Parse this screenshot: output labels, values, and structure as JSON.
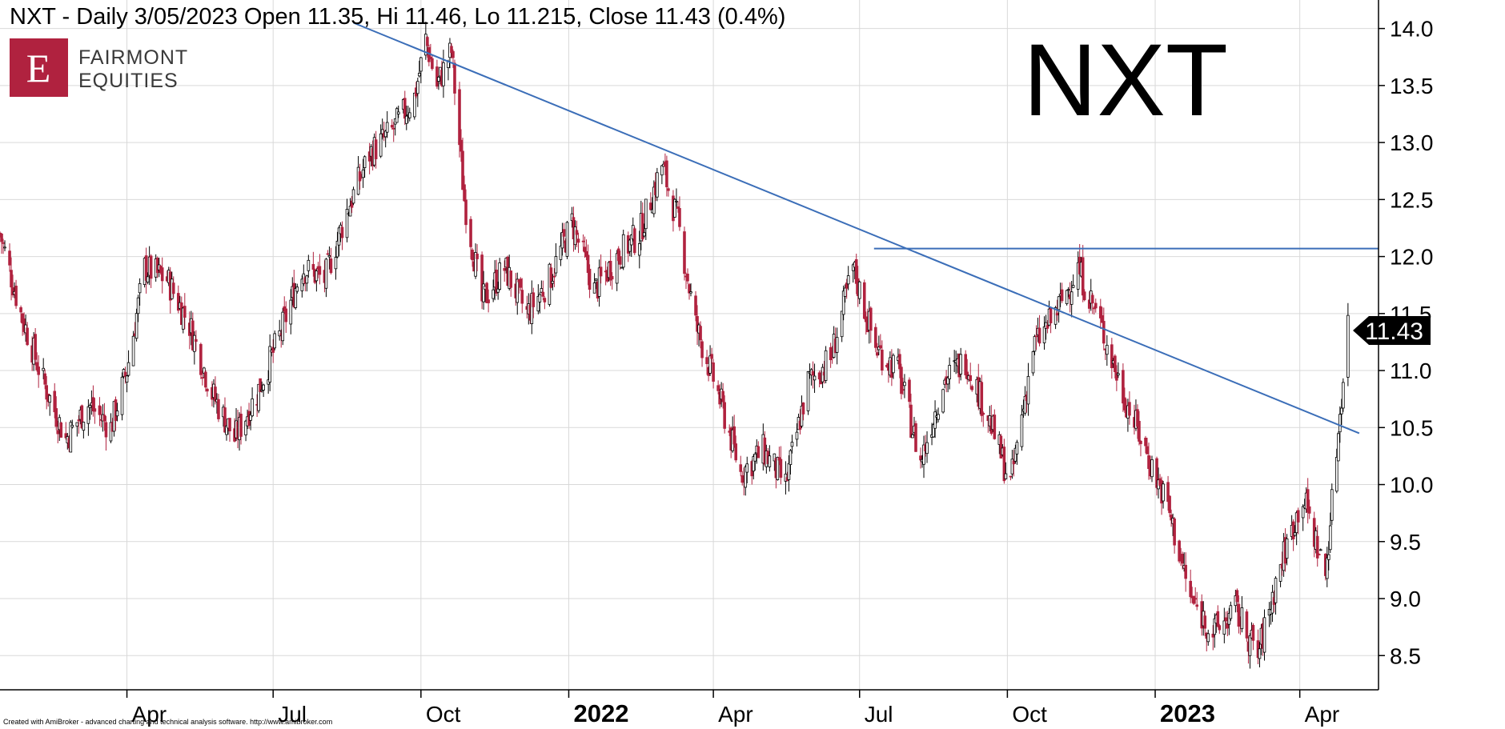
{
  "title": "NXT - Daily 3/05/2023 Open 11.35, Hi 11.46, Lo 11.215, Close 11.43 (0.4%)",
  "big_label": "NXT",
  "logo": {
    "letter": "E",
    "line1": "FAIRMONT",
    "line2": "EQUITIES",
    "color": "#b0223f"
  },
  "footer": "Created with AmiBroker - advanced charting and technical analysis software. http://www.amibroker.com",
  "colors": {
    "up": "#000000",
    "down": "#b0223f",
    "trendline": "#3b6eb8",
    "grid": "#d9d9d9"
  },
  "chart_data": {
    "type": "candlestick",
    "ticker": "NXT",
    "interval": "Daily",
    "last_bar": {
      "date": "3/05/2023",
      "open": 11.35,
      "high": 11.46,
      "low": 11.215,
      "close": 11.43,
      "change": "0.4%"
    },
    "ylim": [
      8.2,
      14.25
    ],
    "y_ticks": [
      "8.5",
      "9.0",
      "9.5",
      "10.0",
      "10.5",
      "11.0",
      "11.5",
      "12.0",
      "12.5",
      "13.0",
      "13.5",
      "14.0"
    ],
    "x_ticks": [
      {
        "label": "Apr",
        "date": "2021-04-01",
        "bold": false
      },
      {
        "label": "Jul",
        "date": "2021-07-01",
        "bold": false
      },
      {
        "label": "Oct",
        "date": "2021-10-01",
        "bold": false
      },
      {
        "label": "2022",
        "date": "2022-01-01",
        "bold": true
      },
      {
        "label": "Apr",
        "date": "2022-04-01",
        "bold": false
      },
      {
        "label": "Jul",
        "date": "2022-07-01",
        "bold": false
      },
      {
        "label": "Oct",
        "date": "2022-10-01",
        "bold": false
      },
      {
        "label": "2023",
        "date": "2023-01-01",
        "bold": true
      },
      {
        "label": "Apr",
        "date": "2023-04-01",
        "bold": false
      }
    ],
    "x_range": [
      "2021-01-12",
      "2023-05-20"
    ],
    "grid": true,
    "close_price_label": "11.43",
    "close_series": [
      [
        "2021-01-12",
        12.2
      ],
      [
        "2021-01-25",
        11.5
      ],
      [
        "2021-02-08",
        10.9
      ],
      [
        "2021-02-22",
        10.4
      ],
      [
        "2021-03-08",
        10.7
      ],
      [
        "2021-03-22",
        10.5
      ],
      [
        "2021-04-01",
        11.0
      ],
      [
        "2021-04-12",
        11.9
      ],
      [
        "2021-04-26",
        11.8
      ],
      [
        "2021-05-10",
        11.4
      ],
      [
        "2021-05-24",
        10.8
      ],
      [
        "2021-06-07",
        10.4
      ],
      [
        "2021-06-21",
        10.8
      ],
      [
        "2021-07-05",
        11.3
      ],
      [
        "2021-07-19",
        11.9
      ],
      [
        "2021-08-02",
        11.8
      ],
      [
        "2021-08-16",
        12.4
      ],
      [
        "2021-08-30",
        12.9
      ],
      [
        "2021-09-13",
        13.1
      ],
      [
        "2021-09-27",
        13.4
      ],
      [
        "2021-10-04",
        13.9
      ],
      [
        "2021-10-11",
        13.5
      ],
      [
        "2021-10-20",
        13.8
      ],
      [
        "2021-10-28",
        12.5
      ],
      [
        "2021-11-08",
        11.6
      ],
      [
        "2021-11-22",
        11.9
      ],
      [
        "2021-12-06",
        11.5
      ],
      [
        "2021-12-20",
        11.8
      ],
      [
        "2022-01-03",
        12.3
      ],
      [
        "2022-01-17",
        11.7
      ],
      [
        "2022-01-31",
        12.0
      ],
      [
        "2022-02-14",
        12.2
      ],
      [
        "2022-02-28",
        12.8
      ],
      [
        "2022-03-10",
        12.3
      ],
      [
        "2022-03-21",
        11.4
      ],
      [
        "2022-04-04",
        10.8
      ],
      [
        "2022-04-18",
        10.1
      ],
      [
        "2022-05-02",
        10.3
      ],
      [
        "2022-05-16",
        10.0
      ],
      [
        "2022-05-30",
        10.9
      ],
      [
        "2022-06-13",
        11.1
      ],
      [
        "2022-06-27",
        11.9
      ],
      [
        "2022-07-11",
        11.2
      ],
      [
        "2022-07-25",
        11.0
      ],
      [
        "2022-08-08",
        10.2
      ],
      [
        "2022-08-22",
        10.9
      ],
      [
        "2022-09-05",
        11.1
      ],
      [
        "2022-09-19",
        10.6
      ],
      [
        "2022-10-03",
        10.0
      ],
      [
        "2022-10-17",
        11.2
      ],
      [
        "2022-10-31",
        11.5
      ],
      [
        "2022-11-14",
        11.9
      ],
      [
        "2022-11-28",
        11.4
      ],
      [
        "2022-12-12",
        10.8
      ],
      [
        "2022-12-26",
        10.3
      ],
      [
        "2023-01-09",
        9.8
      ],
      [
        "2023-01-23",
        9.0
      ],
      [
        "2023-02-06",
        8.7
      ],
      [
        "2023-02-20",
        8.9
      ],
      [
        "2023-03-06",
        8.5
      ],
      [
        "2023-03-20",
        9.3
      ],
      [
        "2023-04-03",
        9.9
      ],
      [
        "2023-04-17",
        9.2
      ],
      [
        "2023-05-01",
        11.43
      ]
    ],
    "lines": [
      {
        "name": "downtrend",
        "from": [
          "2021-08-20",
          14.05
        ],
        "to": [
          "2023-05-08",
          10.45
        ]
      },
      {
        "name": "resistance",
        "from": [
          "2022-07-10",
          12.07
        ],
        "to": [
          "2023-05-20",
          12.07
        ]
      }
    ]
  }
}
